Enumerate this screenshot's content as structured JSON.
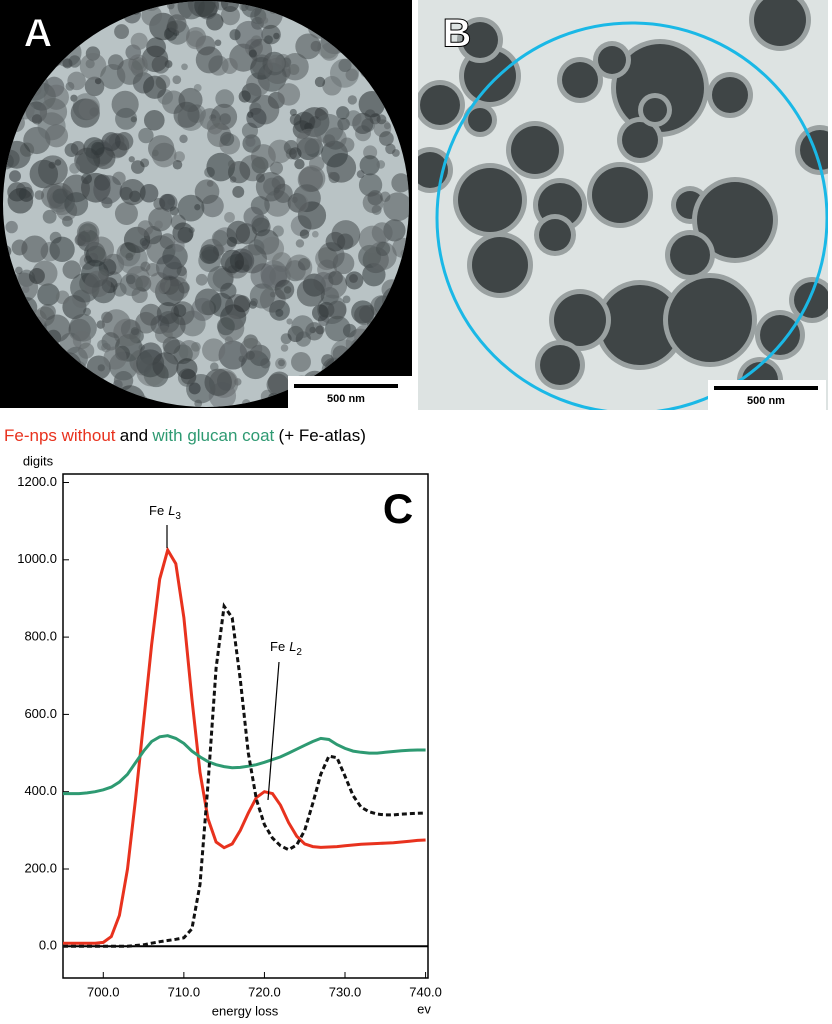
{
  "panels": [
    {
      "label": "A",
      "scale_bar": "500 nm"
    },
    {
      "label": "B",
      "scale_bar": "500 nm"
    }
  ],
  "chart_data": {
    "type": "line",
    "panel_label": "C",
    "title": [
      "Fe-nps without",
      "and",
      "with glucan coat",
      "(+ Fe-atlas)"
    ],
    "y_label": "digits",
    "x_label": "energy loss",
    "x_unit": "ev",
    "x": [
      695,
      696,
      697,
      698,
      699,
      700,
      701,
      702,
      703,
      704,
      705,
      706,
      707,
      708,
      709,
      710,
      711,
      712,
      713,
      714,
      715,
      716,
      717,
      718,
      719,
      720,
      721,
      722,
      723,
      724,
      725,
      726,
      727,
      728,
      729,
      730,
      731,
      732,
      733,
      734,
      735,
      736,
      737,
      738,
      739,
      740
    ],
    "series": [
      {
        "name": "Fe-nps without",
        "color": "#e8321e",
        "dash": false,
        "values": [
          8,
          8,
          8,
          8,
          8,
          10,
          25,
          80,
          200,
          380,
          580,
          780,
          950,
          1025,
          990,
          850,
          640,
          450,
          330,
          270,
          255,
          265,
          300,
          345,
          385,
          400,
          395,
          365,
          320,
          285,
          265,
          258,
          256,
          257,
          258,
          260,
          262,
          264,
          265,
          266,
          267,
          268,
          270,
          272,
          274,
          275
        ]
      },
      {
        "name": "with glucan coat",
        "color": "#2e9a72",
        "dash": false,
        "values": [
          395,
          395,
          395,
          397,
          400,
          405,
          412,
          425,
          445,
          475,
          505,
          530,
          542,
          545,
          538,
          525,
          505,
          490,
          478,
          470,
          465,
          462,
          463,
          466,
          470,
          476,
          483,
          490,
          500,
          510,
          520,
          530,
          538,
          535,
          522,
          512,
          505,
          502,
          500,
          500,
          502,
          504,
          506,
          507,
          508,
          508
        ]
      },
      {
        "color": "#111111",
        "dash": true,
        "values": [
          0,
          0,
          0,
          0,
          0,
          0,
          0,
          0,
          0,
          2,
          4,
          8,
          12,
          15,
          18,
          22,
          45,
          160,
          420,
          720,
          880,
          850,
          690,
          500,
          380,
          315,
          280,
          260,
          250,
          262,
          300,
          370,
          445,
          492,
          488,
          440,
          390,
          360,
          348,
          342,
          340,
          340,
          342,
          343,
          344,
          345
        ]
      }
    ],
    "annotations": [
      {
        "text": "Fe",
        "symbol": "L",
        "subscript": "3"
      },
      {
        "text": "Fe",
        "symbol": "L",
        "subscript": "2"
      }
    ],
    "xlim": [
      695,
      740.3
    ],
    "ylim": [
      -82,
      1222
    ],
    "xticks": [
      {
        "value": 700,
        "label": "700.0"
      },
      {
        "value": 710,
        "label": "710.0"
      },
      {
        "value": 720,
        "label": "720.0"
      },
      {
        "value": 730,
        "label": "730.0"
      },
      {
        "value": 740,
        "label": "740.0"
      }
    ],
    "yticks": [
      {
        "value": 0,
        "label": "0.0"
      },
      {
        "value": 200,
        "label": "200.0"
      },
      {
        "value": 400,
        "label": "400.0"
      },
      {
        "value": 600,
        "label": "600.0"
      },
      {
        "value": 800,
        "label": "800.0"
      },
      {
        "value": 1000,
        "label": "1000.0"
      },
      {
        "value": 1200,
        "label": "1200.0"
      }
    ],
    "grid": false
  }
}
